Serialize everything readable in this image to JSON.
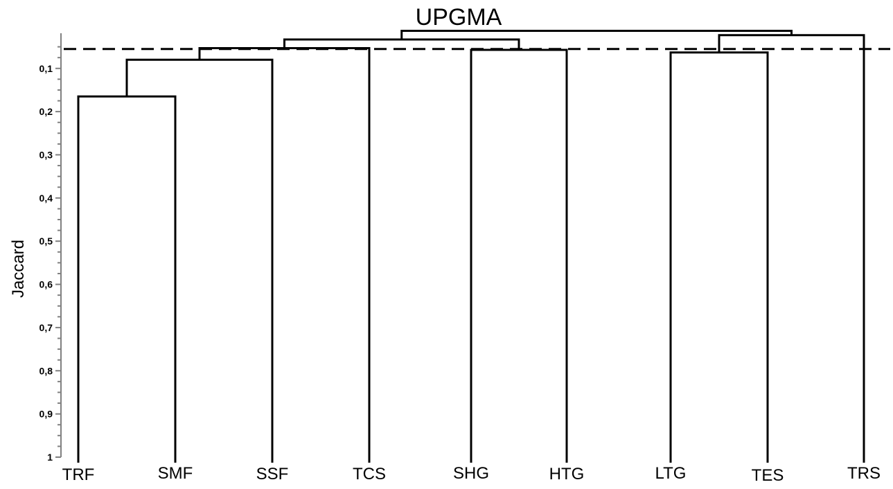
{
  "chart_data": {
    "type": "dendrogram",
    "title": "UPGMA",
    "ylabel": "Jaccard",
    "ylim": [
      0.025,
      1.0
    ],
    "yticks": [
      "0,1",
      "0,2",
      "0,3",
      "0,4",
      "0,5",
      "0,6",
      "0,7",
      "0,8",
      "0,9",
      "1"
    ],
    "ytick_values": [
      0.1,
      0.2,
      0.3,
      0.4,
      0.5,
      0.6,
      0.7,
      0.8,
      0.9,
      1.0
    ],
    "leaves": [
      "TRF",
      "SMF",
      "SSF",
      "TCS",
      "SHG",
      "HTG",
      "LTG",
      "TES",
      "TRS"
    ],
    "merges": [
      {
        "a": "TRF",
        "b": "SMF",
        "height": 0.165
      },
      {
        "a": "TRF+SMF",
        "b": "SSF",
        "height": 0.08
      },
      {
        "a": "TRF+SMF+SSF",
        "b": "TCS",
        "height": 0.053
      },
      {
        "a": "SHG",
        "b": "HTG",
        "height": 0.057
      },
      {
        "a": "TRF+SMF+SSF+TCS",
        "b": "SHG+HTG",
        "height": 0.033
      },
      {
        "a": "LTG",
        "b": "TES",
        "height": 0.063
      },
      {
        "a": "LTG+TES",
        "b": "TRS",
        "height": 0.023
      },
      {
        "a": "TRF+SMF+SSF+TCS+SHG+HTG",
        "b": "LTG+TES+TRS",
        "height": 0.013
      }
    ],
    "cutoff": 0.055,
    "grid": false,
    "legend": "none",
    "colors": {
      "lines": "#000000",
      "axis": "#808080"
    }
  }
}
